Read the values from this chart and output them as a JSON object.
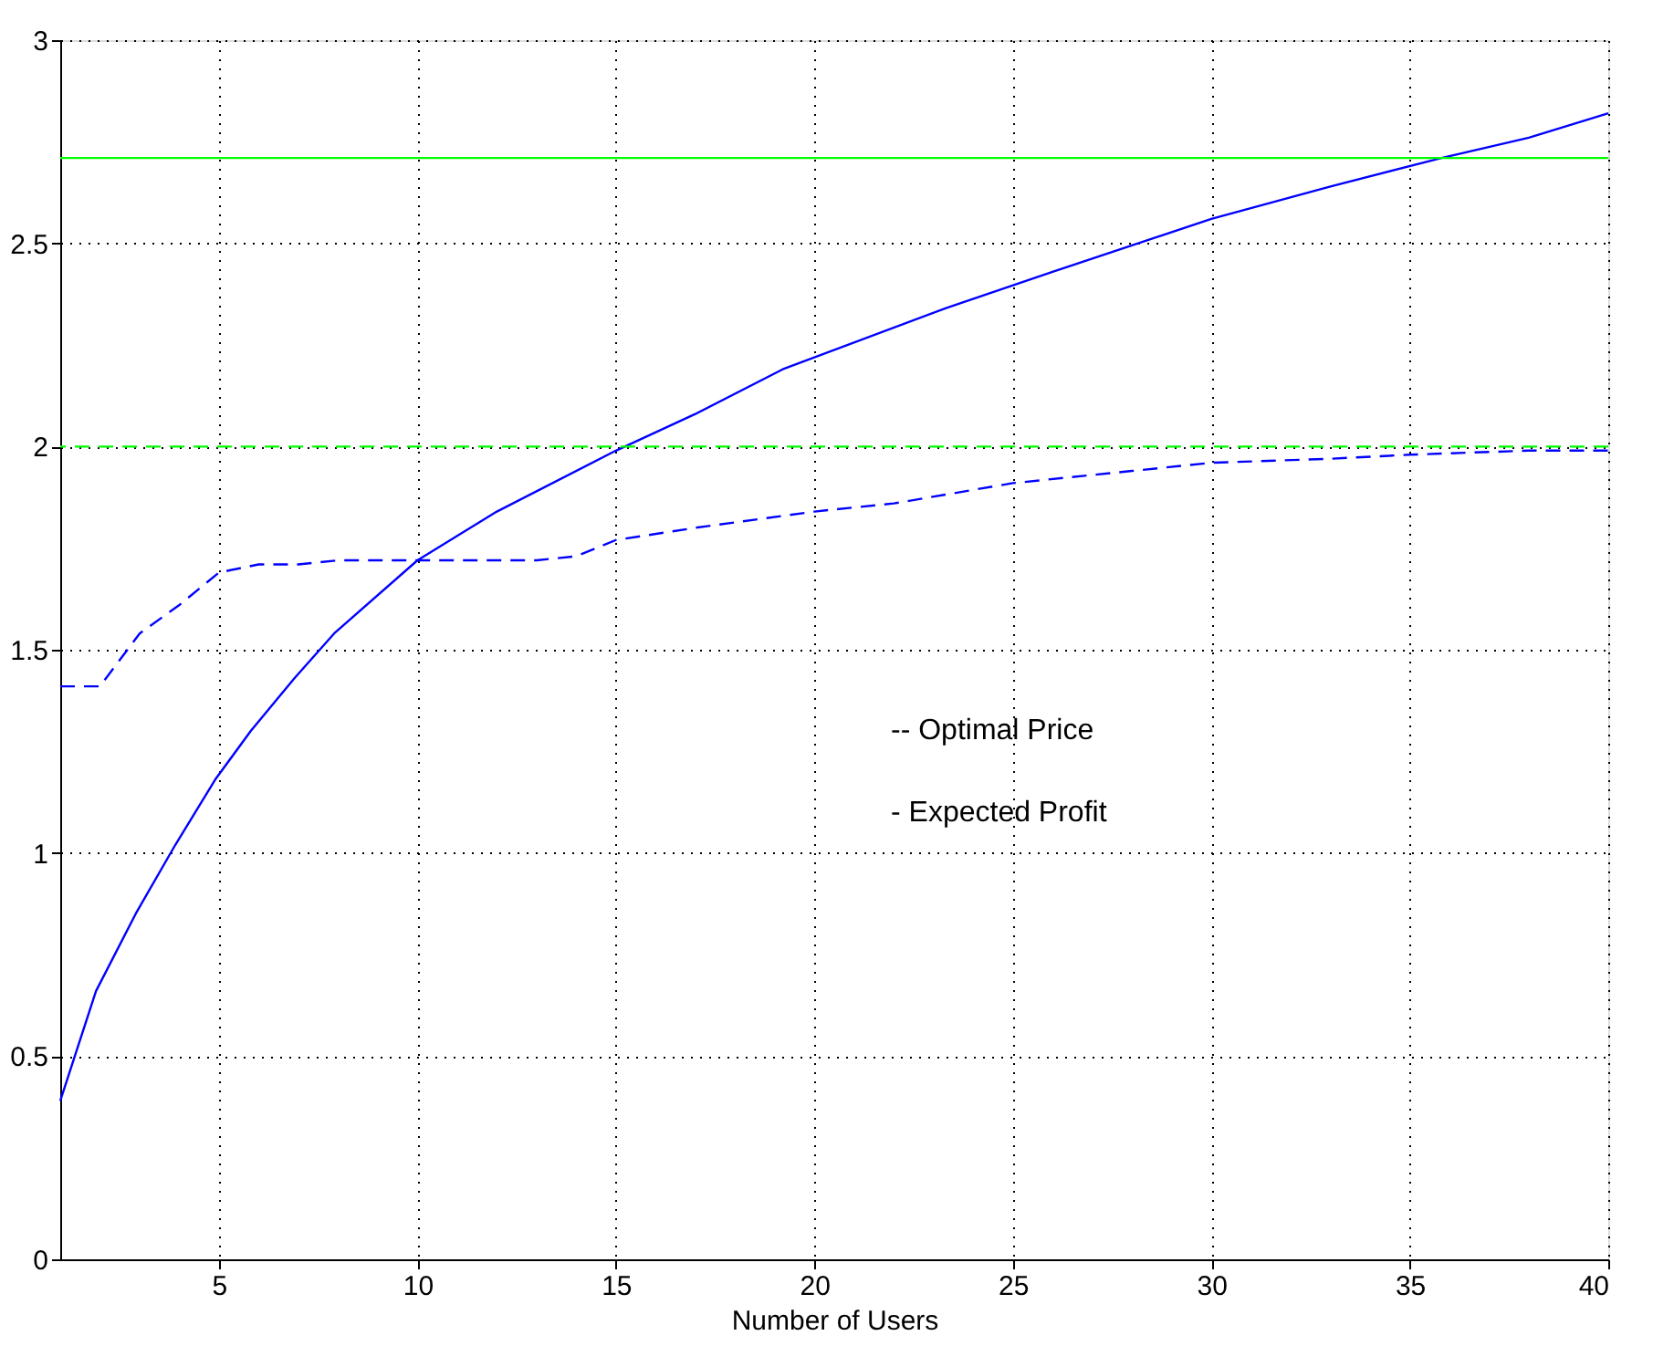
{
  "chart_data": {
    "type": "line",
    "xlabel": "Number of Users",
    "series": [
      {
        "color": "#0000ff",
        "line_style": "dashed",
        "x": [
          1,
          2,
          3,
          4,
          5,
          6,
          7,
          8,
          10,
          12,
          13,
          14,
          15,
          17,
          20,
          22,
          25,
          28,
          30,
          33,
          35,
          38,
          40
        ],
        "values": [
          1.41,
          1.41,
          1.54,
          1.61,
          1.69,
          1.71,
          1.71,
          1.72,
          1.72,
          1.72,
          1.72,
          1.73,
          1.77,
          1.8,
          1.84,
          1.86,
          1.91,
          1.94,
          1.96,
          1.97,
          1.98,
          1.99,
          1.99
        ]
      },
      {
        "color": "#0000ff",
        "line_style": "solid",
        "x": [
          1,
          1.9,
          2.9,
          3.9,
          4.9,
          5.8,
          6.9,
          7.9,
          10,
          12,
          15,
          17,
          19.2,
          23.3,
          26,
          30,
          33,
          35.8,
          38,
          40
        ],
        "values": [
          0.39,
          0.66,
          0.85,
          1.02,
          1.18,
          1.3,
          1.43,
          1.54,
          1.72,
          1.84,
          1.99,
          2.08,
          2.19,
          2.34,
          2.43,
          2.56,
          2.64,
          2.71,
          2.76,
          2.82
        ]
      }
    ],
    "ref_lines": [
      {
        "axis": "y",
        "value": 2.71,
        "color": "#00ff00",
        "line_style": "solid"
      },
      {
        "axis": "y",
        "value": 2.0,
        "color": "#00ff00",
        "line_style": "dashed"
      }
    ],
    "annotations": [
      "-- Optimal Price",
      "- Expected Profit"
    ],
    "xlim": [
      1,
      40
    ],
    "xticks": [
      5,
      10,
      15,
      20,
      25,
      30,
      35,
      40
    ],
    "ylim": [
      0,
      3
    ],
    "yticks": [
      0,
      0.5,
      1,
      1.5,
      2,
      2.5,
      3
    ],
    "grid": true
  }
}
